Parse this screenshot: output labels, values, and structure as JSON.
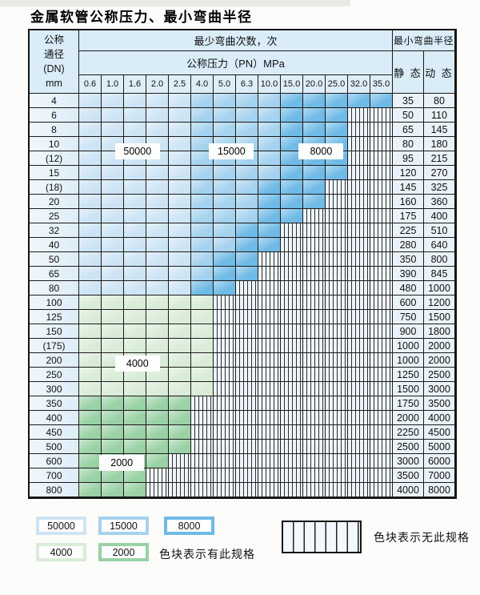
{
  "chart_data": {
    "type": "table",
    "title": "金属软管公称压力、最小弯曲半径",
    "header": {
      "dn_lines": [
        "公称",
        "通径",
        "(DN)",
        "mm"
      ],
      "bend_count": "最少弯曲次数，次",
      "pressure": "公称压力（PN）MPa",
      "radius": "最小弯曲半径",
      "static": "静 态",
      "dynamic": "动 态",
      "pressure_columns": [
        "0.6",
        "1.0",
        "1.6",
        "2.0",
        "2.5",
        "4.0",
        "5.0",
        "6.3",
        "10.0",
        "15.0",
        "20.0",
        "25.0",
        "32.0",
        "35.0"
      ]
    },
    "rows": [
      {
        "dn": "4",
        "static": "35",
        "dynamic": "80",
        "zones": [
          [
            "50000",
            5
          ],
          [
            "15000",
            4
          ],
          [
            "8000",
            5
          ]
        ]
      },
      {
        "dn": "6",
        "static": "50",
        "dynamic": "110",
        "zones": [
          [
            "50000",
            5
          ],
          [
            "15000",
            4
          ],
          [
            "8000",
            3
          ]
        ]
      },
      {
        "dn": "8",
        "static": "65",
        "dynamic": "145",
        "zones": [
          [
            "50000",
            5
          ],
          [
            "15000",
            4
          ],
          [
            "8000",
            3
          ]
        ]
      },
      {
        "dn": "10",
        "static": "80",
        "dynamic": "180",
        "zones": [
          [
            "50000",
            5
          ],
          [
            "15000",
            4
          ],
          [
            "8000",
            3
          ]
        ]
      },
      {
        "dn": "(12)",
        "static": "95",
        "dynamic": "215",
        "zones": [
          [
            "50000",
            5
          ],
          [
            "15000",
            4
          ],
          [
            "8000",
            3
          ]
        ]
      },
      {
        "dn": "15",
        "static": "120",
        "dynamic": "270",
        "zones": [
          [
            "50000",
            5
          ],
          [
            "15000",
            4
          ],
          [
            "8000",
            3
          ]
        ]
      },
      {
        "dn": "(18)",
        "static": "145",
        "dynamic": "325",
        "zones": [
          [
            "50000",
            5
          ],
          [
            "15000",
            3
          ],
          [
            "8000",
            3
          ]
        ]
      },
      {
        "dn": "20",
        "static": "160",
        "dynamic": "360",
        "zones": [
          [
            "50000",
            5
          ],
          [
            "15000",
            3
          ],
          [
            "8000",
            3
          ]
        ]
      },
      {
        "dn": "25",
        "static": "175",
        "dynamic": "400",
        "zones": [
          [
            "50000",
            5
          ],
          [
            "15000",
            3
          ],
          [
            "8000",
            2
          ]
        ]
      },
      {
        "dn": "32",
        "static": "225",
        "dynamic": "510",
        "zones": [
          [
            "50000",
            5
          ],
          [
            "15000",
            2
          ],
          [
            "8000",
            2
          ]
        ]
      },
      {
        "dn": "40",
        "static": "280",
        "dynamic": "640",
        "zones": [
          [
            "50000",
            5
          ],
          [
            "15000",
            2
          ],
          [
            "8000",
            2
          ]
        ]
      },
      {
        "dn": "50",
        "static": "350",
        "dynamic": "800",
        "zones": [
          [
            "50000",
            5
          ],
          [
            "15000",
            1
          ],
          [
            "8000",
            2
          ]
        ]
      },
      {
        "dn": "65",
        "static": "390",
        "dynamic": "845",
        "zones": [
          [
            "50000",
            5
          ],
          [
            "15000",
            1
          ],
          [
            "8000",
            2
          ]
        ]
      },
      {
        "dn": "80",
        "static": "480",
        "dynamic": "1000",
        "zones": [
          [
            "50000",
            5
          ],
          [
            "8000",
            2
          ]
        ]
      },
      {
        "dn": "100",
        "static": "600",
        "dynamic": "1200",
        "zones": [
          [
            "4000",
            6
          ]
        ]
      },
      {
        "dn": "125",
        "static": "750",
        "dynamic": "1500",
        "zones": [
          [
            "4000",
            6
          ]
        ]
      },
      {
        "dn": "150",
        "static": "900",
        "dynamic": "1800",
        "zones": [
          [
            "4000",
            6
          ]
        ]
      },
      {
        "dn": "(175)",
        "static": "1000",
        "dynamic": "2000",
        "zones": [
          [
            "4000",
            6
          ]
        ]
      },
      {
        "dn": "200",
        "static": "1000",
        "dynamic": "2000",
        "zones": [
          [
            "4000",
            6
          ]
        ]
      },
      {
        "dn": "250",
        "static": "1250",
        "dynamic": "2500",
        "zones": [
          [
            "4000",
            6
          ]
        ]
      },
      {
        "dn": "300",
        "static": "1500",
        "dynamic": "3000",
        "zones": [
          [
            "4000",
            6
          ]
        ]
      },
      {
        "dn": "350",
        "static": "1750",
        "dynamic": "3500",
        "zones": [
          [
            "2000",
            5
          ]
        ]
      },
      {
        "dn": "400",
        "static": "2000",
        "dynamic": "4000",
        "zones": [
          [
            "2000",
            5
          ]
        ]
      },
      {
        "dn": "450",
        "static": "2250",
        "dynamic": "4500",
        "zones": [
          [
            "2000",
            5
          ]
        ]
      },
      {
        "dn": "500",
        "static": "2500",
        "dynamic": "5000",
        "zones": [
          [
            "2000",
            5
          ]
        ]
      },
      {
        "dn": "600",
        "static": "3000",
        "dynamic": "6000",
        "zones": [
          [
            "2000",
            4
          ]
        ]
      },
      {
        "dn": "700",
        "static": "3500",
        "dynamic": "7000",
        "zones": [
          [
            "2000",
            3
          ]
        ]
      },
      {
        "dn": "800",
        "static": "4000",
        "dynamic": "8000",
        "zones": [
          [
            "2000",
            3
          ]
        ]
      }
    ],
    "zone_labels": [
      {
        "text": "50000",
        "row_line": 4,
        "col_start": 1.6,
        "col_span": 2
      },
      {
        "text": "15000",
        "row_line": 4,
        "col_start": 5.8,
        "col_span": 2
      },
      {
        "text": "8000",
        "row_line": 4,
        "col_start": 9.8,
        "col_span": 2
      },
      {
        "text": "4000",
        "row_line": 18.7,
        "col_start": 1.6,
        "col_span": 2
      },
      {
        "text": "2000",
        "row_line": 25.6,
        "col_start": 0.9,
        "col_span": 2
      }
    ],
    "colors": {
      "50000": "#cde4f5",
      "15000": "#a5d2ee",
      "8000": "#6fbae6",
      "4000": "#d9ecd7",
      "2000": "#9ad1a5",
      "hatch_bg": "#edf4fa",
      "header_bg": "#d9ecf8",
      "border": "#1b1b1b"
    },
    "legend": {
      "items": [
        {
          "label": "50000",
          "color": "50000"
        },
        {
          "label": "15000",
          "color": "15000"
        },
        {
          "label": "8000",
          "color": "8000"
        },
        {
          "label": "4000",
          "color": "4000"
        },
        {
          "label": "2000",
          "color": "2000"
        }
      ],
      "exists_text": "色块表示有此规格",
      "none_text": "色块表示无此规格"
    }
  }
}
